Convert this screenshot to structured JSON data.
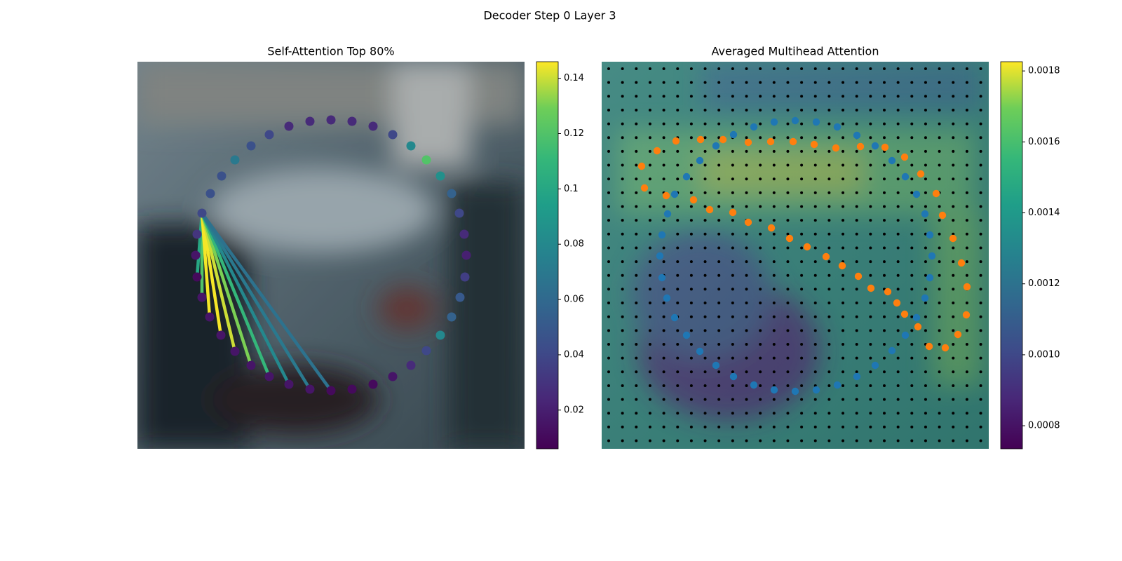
{
  "title": "Decoder Step 0 Layer 3",
  "chart_data": [
    {
      "type": "scatter",
      "title": "Self-Attention Top 80%",
      "cmap": "viridis",
      "xlim": [
        0,
        552
      ],
      "ylim": [
        552,
        0
      ],
      "x": [
        92,
        104,
        120,
        139,
        162,
        188,
        216,
        246,
        276,
        306,
        336,
        364,
        390,
        412,
        432,
        448,
        459,
        466,
        469,
        467,
        460,
        448,
        432,
        412,
        390,
        364,
        336,
        306,
        276,
        246,
        216,
        188,
        162,
        139,
        119,
        103,
        92,
        85,
        83,
        85
      ],
      "y": [
        216,
        188,
        163,
        140,
        120,
        104,
        92,
        85,
        83,
        85,
        92,
        104,
        120,
        140,
        163,
        188,
        216,
        246,
        276,
        307,
        336,
        364,
        390,
        412,
        433,
        449,
        460,
        467,
        469,
        467,
        460,
        449,
        433,
        413,
        390,
        364,
        336,
        307,
        276,
        246
      ],
      "values": [
        0.04,
        0.045,
        0.045,
        0.07,
        0.045,
        0.04,
        0.025,
        0.025,
        0.025,
        0.025,
        0.025,
        0.04,
        0.08,
        0.12,
        0.085,
        0.055,
        0.04,
        0.025,
        0.02,
        0.035,
        0.05,
        0.055,
        0.08,
        0.04,
        0.025,
        0.015,
        0.01,
        0.01,
        0.01,
        0.015,
        0.015,
        0.015,
        0.015,
        0.015,
        0.015,
        0.015,
        0.015,
        0.01,
        0.015,
        0.03
      ],
      "lines": {
        "source": {
          "x": 92,
          "y": 216
        },
        "x": [
          92,
          85,
          103,
          119,
          139,
          162,
          188,
          216,
          246,
          276
        ],
        "y": [
          336,
          307,
          364,
          390,
          413,
          433,
          449,
          460,
          467,
          469
        ],
        "values": [
          0.12,
          0.1,
          0.145,
          0.145,
          0.14,
          0.13,
          0.11,
          0.08,
          0.07,
          0.065
        ]
      },
      "clim": [
        0.006,
        0.146
      ],
      "cticks": [
        0.02,
        0.04,
        0.06,
        0.08,
        0.1,
        0.12,
        0.14
      ]
    },
    {
      "type": "scatter",
      "title": "Averaged Multihead Attention",
      "cmap": "viridis",
      "xlim": [
        0,
        552
      ],
      "ylim": [
        552,
        0
      ],
      "series": [
        {
          "color": "#1f77b4",
          "x": [
            94,
            104,
            121,
            140,
            163,
            188,
            217,
            246,
            276,
            306,
            336,
            364,
            390,
            414,
            433,
            449,
            461,
            468,
            471,
            468,
            461,
            449,
            433,
            414,
            390,
            364,
            336,
            306,
            276,
            246,
            217,
            188,
            163,
            140,
            121,
            104,
            93,
            86,
            83,
            86
          ],
          "y": [
            217,
            189,
            164,
            141,
            120,
            104,
            93,
            86,
            84,
            86,
            93,
            105,
            120,
            141,
            164,
            189,
            217,
            247,
            277,
            308,
            337,
            365,
            390,
            412,
            433,
            449,
            461,
            468,
            470,
            468,
            461,
            449,
            433,
            413,
            390,
            365,
            337,
            308,
            277,
            247
          ]
        },
        {
          "color": "#ff7f0e",
          "x": [
            57,
            79,
            106,
            141,
            173,
            209,
            241,
            273,
            303,
            334,
            369,
            404,
            432,
            455,
            477,
            486,
            501,
            513,
            521,
            520,
            508,
            490,
            467,
            451,
            432,
            421,
            408,
            384,
            366,
            343,
            320,
            293,
            268,
            242,
            209,
            187,
            154,
            131,
            92,
            61
          ],
          "y": [
            149,
            127,
            113,
            111,
            111,
            115,
            114,
            114,
            118,
            123,
            121,
            122,
            136,
            160,
            188,
            219,
            252,
            287,
            321,
            361,
            389,
            408,
            406,
            378,
            360,
            344,
            328,
            323,
            306,
            291,
            278,
            264,
            252,
            237,
            229,
            215,
            211,
            197,
            191,
            180
          ]
        }
      ],
      "clim": [
        0.000735,
        0.001826
      ],
      "cticks": [
        {
          "value": 0.0008,
          "label": "0.0008"
        },
        {
          "value": 0.001,
          "label": "0.0010"
        },
        {
          "value": 0.0012,
          "label": "0.0012"
        },
        {
          "value": 0.0014,
          "label": "0.0014"
        },
        {
          "value": 0.0016,
          "label": "0.0016"
        },
        {
          "value": 0.0018,
          "label": "0.0018"
        }
      ]
    }
  ]
}
